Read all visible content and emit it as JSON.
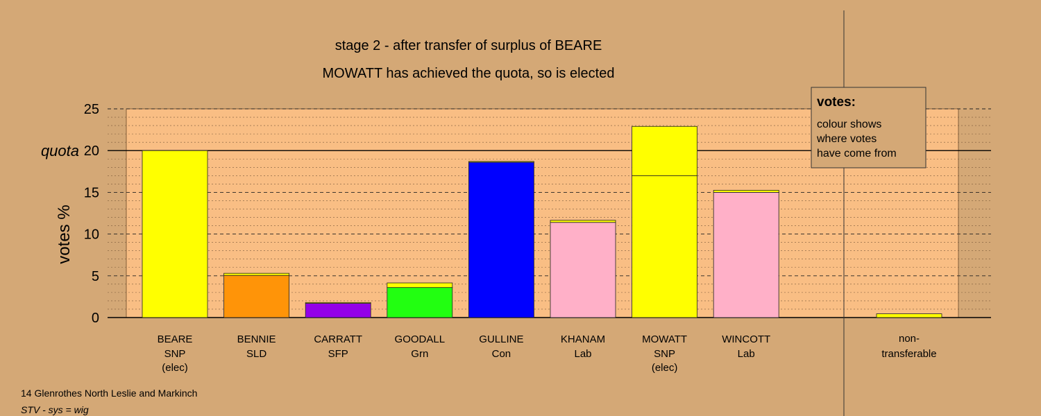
{
  "chart_data": {
    "type": "bar",
    "title": "stage 2 - after transfer of surplus of BEARE",
    "subtitle": "MOWATT has achieved the quota, so is elected",
    "ylabel": "votes %",
    "quota_label": "quota",
    "quota": 20,
    "ylim": [
      0,
      25
    ],
    "yticks": [
      0,
      5,
      10,
      15,
      20,
      25
    ],
    "candidates": [
      {
        "name": "BEARE",
        "party": "SNP",
        "status": "(elec)",
        "segments": [
          {
            "value": 20.0,
            "color": "#ffff00"
          }
        ]
      },
      {
        "name": "BENNIE",
        "party": "SLD",
        "status": "",
        "segments": [
          {
            "value": 5.05,
            "color": "#ff9408"
          },
          {
            "value": 0.25,
            "color": "#ffff00"
          }
        ]
      },
      {
        "name": "CARRATT",
        "party": "SFP",
        "status": "",
        "segments": [
          {
            "value": 1.7,
            "color": "#9400e8"
          },
          {
            "value": 0.1,
            "color": "#ffff00"
          }
        ]
      },
      {
        "name": "GOODALL",
        "party": "Grn",
        "status": "",
        "segments": [
          {
            "value": 3.6,
            "color": "#22ff11"
          },
          {
            "value": 0.55,
            "color": "#ffff00"
          }
        ]
      },
      {
        "name": "GULLINE",
        "party": "Con",
        "status": "",
        "segments": [
          {
            "value": 18.6,
            "color": "#0000ff"
          },
          {
            "value": 0.1,
            "color": "#ffff00"
          }
        ]
      },
      {
        "name": "KHANAM",
        "party": "Lab",
        "status": "",
        "segments": [
          {
            "value": 11.4,
            "color": "#ffb0c8"
          },
          {
            "value": 0.25,
            "color": "#ffff00"
          }
        ]
      },
      {
        "name": "MOWATT",
        "party": "SNP",
        "status": "(elec)",
        "segments": [
          {
            "value": 17.0,
            "color": "#ffff00"
          },
          {
            "value": 5.9,
            "color": "#ffff00"
          }
        ]
      },
      {
        "name": "WINCOTT",
        "party": "Lab",
        "status": "",
        "segments": [
          {
            "value": 15.0,
            "color": "#ffb0c8"
          },
          {
            "value": 0.25,
            "color": "#ffff00"
          }
        ]
      }
    ],
    "nontransferable": {
      "label_line1": "non-",
      "label_line2": "transferable",
      "value": 0.45,
      "color": "#ffff00"
    },
    "legend": {
      "title": "votes:",
      "lines": [
        "colour shows",
        "where votes",
        "have come from"
      ]
    },
    "footer": {
      "line1": "14 Glenrothes North Leslie and Markinch",
      "line2": "STV - sys = wig"
    },
    "colors": {
      "background": "#d4a876",
      "plot_background": "#f9be84"
    }
  }
}
